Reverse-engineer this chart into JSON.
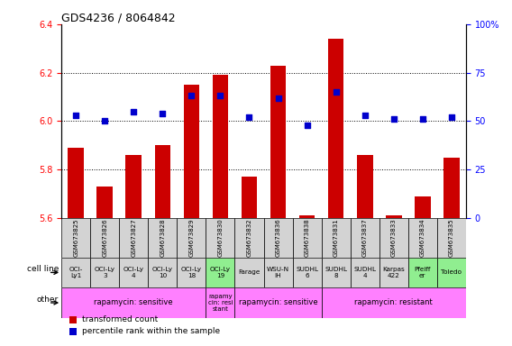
{
  "title": "GDS4236 / 8064842",
  "samples": [
    "GSM673825",
    "GSM673826",
    "GSM673827",
    "GSM673828",
    "GSM673829",
    "GSM673830",
    "GSM673832",
    "GSM673836",
    "GSM673838",
    "GSM673831",
    "GSM673837",
    "GSM673833",
    "GSM673834",
    "GSM673835"
  ],
  "red_values": [
    5.89,
    5.73,
    5.86,
    5.9,
    6.15,
    6.19,
    5.77,
    6.23,
    5.61,
    6.34,
    5.86,
    5.61,
    5.69,
    5.85
  ],
  "blue_values": [
    53,
    50,
    55,
    54,
    63,
    63,
    52,
    62,
    48,
    65,
    53,
    51,
    51,
    52
  ],
  "cell_line": [
    "OCI-\nLy1",
    "OCI-Ly\n3",
    "OCI-Ly\n4",
    "OCI-Ly\n10",
    "OCI-Ly\n18",
    "OCI-Ly\n19",
    "Farage",
    "WSU-N\nIH",
    "SUDHL\n6",
    "SUDHL\n8",
    "SUDHL\n4",
    "Karpas\n422",
    "Pfeiff\ner",
    "Toledo"
  ],
  "cell_line_colors": [
    "#d3d3d3",
    "#d3d3d3",
    "#d3d3d3",
    "#d3d3d3",
    "#d3d3d3",
    "#90ee90",
    "#d3d3d3",
    "#d3d3d3",
    "#d3d3d3",
    "#d3d3d3",
    "#d3d3d3",
    "#d3d3d3",
    "#90ee90",
    "#90ee90"
  ],
  "other_spans": [
    {
      "label": "rapamycin: sensitive",
      "start": 0,
      "end": 5,
      "color": "#ff80ff"
    },
    {
      "label": "rapamy\ncin: resi\nstant",
      "start": 5,
      "end": 6,
      "color": "#ff80ff"
    },
    {
      "label": "rapamycin: sensitive",
      "start": 6,
      "end": 9,
      "color": "#ff80ff"
    },
    {
      "label": "rapamycin: resistant",
      "start": 9,
      "end": 14,
      "color": "#ff80ff"
    }
  ],
  "ylim_left": [
    5.6,
    6.4
  ],
  "ylim_right": [
    0,
    100
  ],
  "yticks_left": [
    5.6,
    5.8,
    6.0,
    6.2,
    6.4
  ],
  "yticks_right": [
    0,
    25,
    50,
    75,
    100
  ],
  "ytick_labels_right": [
    "0",
    "25",
    "50",
    "75",
    "100%"
  ],
  "grid_lines": [
    5.8,
    6.0,
    6.2
  ],
  "bar_color": "#cc0000",
  "dot_color": "#0000cc",
  "legend_items": [
    {
      "label": "transformed count",
      "color": "#cc0000"
    },
    {
      "label": "percentile rank within the sample",
      "color": "#0000cc"
    }
  ]
}
